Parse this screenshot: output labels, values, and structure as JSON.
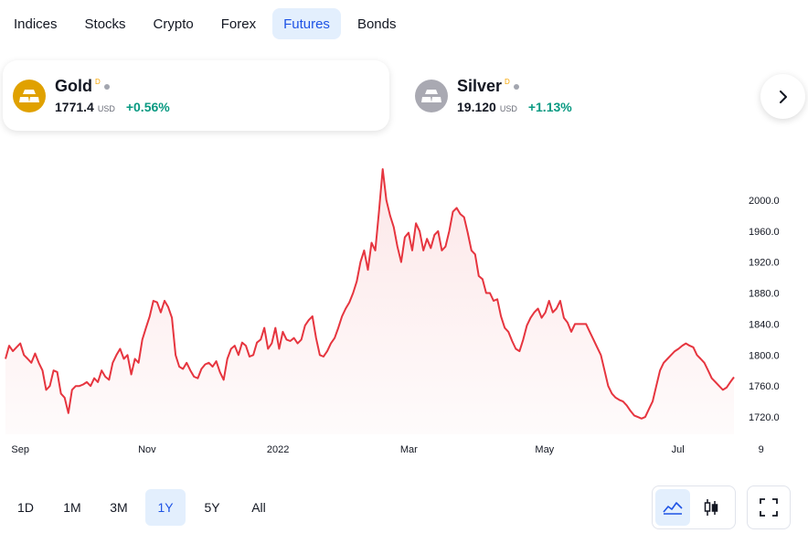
{
  "tabs": [
    {
      "label": "Indices",
      "active": false
    },
    {
      "label": "Stocks",
      "active": false
    },
    {
      "label": "Crypto",
      "active": false
    },
    {
      "label": "Forex",
      "active": false
    },
    {
      "label": "Futures",
      "active": true
    },
    {
      "label": "Bonds",
      "active": false
    }
  ],
  "cards": [
    {
      "name": "Gold",
      "sup": "D",
      "price": "1771.4",
      "currency": "USD",
      "change": "+0.56%",
      "icon": "gold-bars-icon",
      "icon_color": "#e0a100",
      "active": true
    },
    {
      "name": "Silver",
      "sup": "D",
      "price": "19.120",
      "currency": "USD",
      "change": "+1.13%",
      "icon": "silver-bars-icon",
      "icon_color": "#a9a9b2",
      "active": false
    }
  ],
  "ranges": [
    {
      "label": "1D",
      "active": false
    },
    {
      "label": "1M",
      "active": false
    },
    {
      "label": "3M",
      "active": false
    },
    {
      "label": "1Y",
      "active": true
    },
    {
      "label": "5Y",
      "active": false
    },
    {
      "label": "All",
      "active": false
    }
  ],
  "colors": {
    "accent": "#1e53e5",
    "line": "#e6353f",
    "positive": "#089981"
  },
  "chart_data": {
    "type": "area",
    "ylim": [
      1700,
      2040
    ],
    "y_ticks": [
      "2000.0",
      "1960.0",
      "1920.0",
      "1880.0",
      "1840.0",
      "1800.0",
      "1760.0",
      "1720.0"
    ],
    "y_tick_values": [
      2000,
      1960,
      1920,
      1880,
      1840,
      1800,
      1760,
      1720
    ],
    "x_ticks": [
      "Sep",
      "Nov",
      "2022",
      "Mar",
      "May",
      "Jul",
      "9"
    ],
    "x_tick_positions": [
      0.014,
      0.182,
      0.344,
      0.506,
      0.674,
      0.839,
      0.942
    ],
    "series": [
      {
        "values": [
          1795,
          1812,
          1805,
          1810,
          1815,
          1800,
          1795,
          1790,
          1802,
          1790,
          1780,
          1755,
          1760,
          1780,
          1778,
          1750,
          1745,
          1725,
          1755,
          1760,
          1760,
          1762,
          1765,
          1760,
          1770,
          1765,
          1780,
          1772,
          1768,
          1790,
          1800,
          1808,
          1795,
          1800,
          1775,
          1795,
          1790,
          1820,
          1835,
          1850,
          1870,
          1868,
          1855,
          1870,
          1862,
          1848,
          1800,
          1785,
          1782,
          1790,
          1780,
          1772,
          1770,
          1782,
          1788,
          1790,
          1785,
          1792,
          1778,
          1768,
          1795,
          1808,
          1812,
          1800,
          1816,
          1812,
          1798,
          1800,
          1816,
          1820,
          1835,
          1808,
          1815,
          1835,
          1808,
          1830,
          1820,
          1818,
          1822,
          1815,
          1820,
          1838,
          1845,
          1850,
          1822,
          1800,
          1798,
          1805,
          1815,
          1822,
          1835,
          1850,
          1860,
          1868,
          1880,
          1895,
          1920,
          1935,
          1910,
          1945,
          1935,
          1985,
          2040,
          2000,
          1980,
          1965,
          1940,
          1920,
          1952,
          1958,
          1935,
          1970,
          1960,
          1935,
          1950,
          1938,
          1955,
          1960,
          1935,
          1940,
          1960,
          1985,
          1990,
          1982,
          1978,
          1958,
          1935,
          1930,
          1902,
          1898,
          1880,
          1880,
          1870,
          1872,
          1850,
          1835,
          1830,
          1818,
          1808,
          1805,
          1820,
          1838,
          1848,
          1855,
          1860,
          1848,
          1855,
          1870,
          1855,
          1860,
          1870,
          1848,
          1842,
          1830,
          1840,
          1840,
          1840,
          1840,
          1830,
          1820,
          1810,
          1800,
          1780,
          1760,
          1750,
          1745,
          1742,
          1740,
          1735,
          1728,
          1722,
          1720,
          1718,
          1720,
          1730,
          1740,
          1760,
          1780,
          1790,
          1795,
          1800,
          1805,
          1808,
          1812,
          1815,
          1812,
          1810,
          1800,
          1795,
          1790,
          1780,
          1770,
          1765,
          1760,
          1755,
          1758,
          1765,
          1771.4
        ]
      }
    ]
  }
}
